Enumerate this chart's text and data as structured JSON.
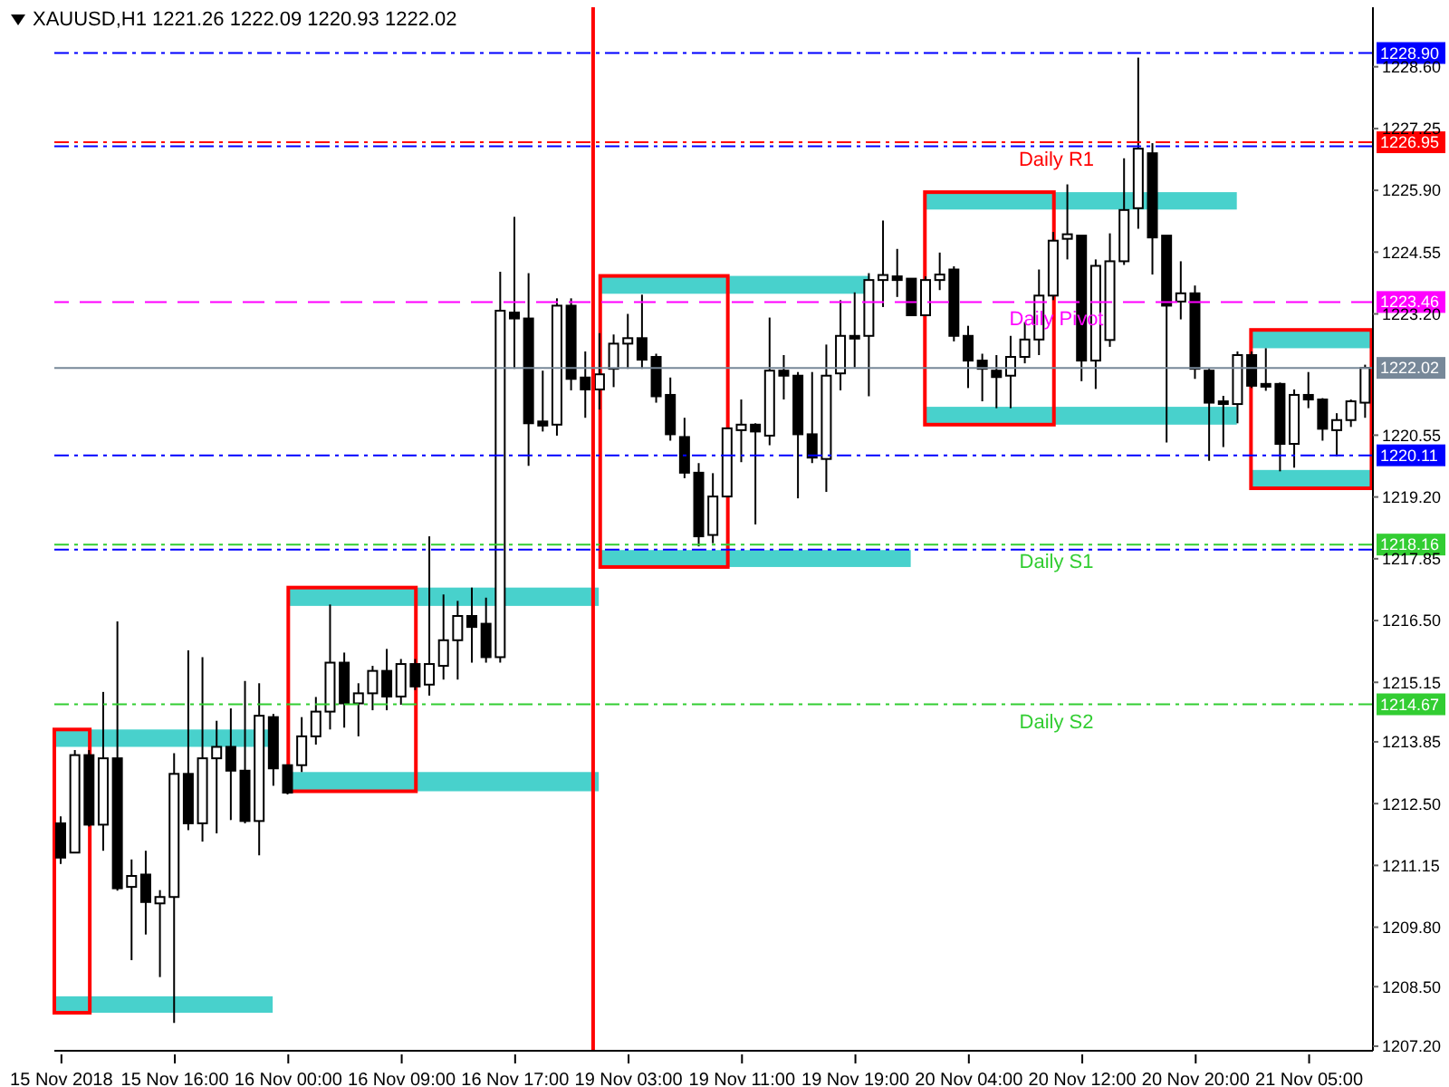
{
  "chart_data": {
    "type": "candlestick",
    "title": "XAUUSD,H1 1221.26 1222.09 1220.93 1222.02",
    "categories": [
      "15 Nov 2018",
      null,
      null,
      null,
      null,
      null,
      null,
      null,
      "15 Nov 16:00",
      null,
      null,
      null,
      null,
      null,
      null,
      null,
      "16 Nov 00:00",
      null,
      null,
      null,
      null,
      null,
      null,
      null,
      "16 Nov 09:00",
      null,
      null,
      null,
      null,
      null,
      null,
      null,
      "16 Nov 17:00",
      null,
      null,
      null,
      null,
      null,
      null,
      null,
      "19 Nov 03:00",
      null,
      null,
      null,
      null,
      null,
      null,
      null,
      "19 Nov 11:00",
      null,
      null,
      null,
      null,
      null,
      null,
      null,
      "19 Nov 19:00",
      null,
      null,
      null,
      null,
      null,
      null,
      null,
      "20 Nov 04:00",
      null,
      null,
      null,
      null,
      null,
      null,
      null,
      "20 Nov 12:00",
      null,
      null,
      null,
      null,
      null,
      null,
      null,
      "20 Nov 20:00",
      null,
      null,
      null,
      null,
      null,
      null,
      null,
      "21 Nov 05:00",
      null,
      null,
      null,
      null
    ],
    "ohlc": [
      [
        1212.07,
        1212.22,
        1211.18,
        1211.32
      ],
      [
        1211.43,
        1213.67,
        1211.43,
        1213.56
      ],
      [
        1213.56,
        1213.67,
        1212.0,
        1212.04
      ],
      [
        1212.04,
        1214.94,
        1211.47,
        1213.49
      ],
      [
        1213.49,
        1216.48,
        1210.6,
        1210.65
      ],
      [
        1210.68,
        1211.28,
        1209.08,
        1210.92
      ],
      [
        1210.95,
        1211.47,
        1209.64,
        1210.35
      ],
      [
        1210.32,
        1210.61,
        1208.71,
        1210.46
      ],
      [
        1210.46,
        1213.6,
        1207.71,
        1213.15
      ],
      [
        1213.15,
        1215.85,
        1211.92,
        1212.07
      ],
      [
        1212.07,
        1215.7,
        1211.67,
        1213.49
      ],
      [
        1213.49,
        1214.31,
        1211.85,
        1213.74
      ],
      [
        1213.74,
        1214.58,
        1212.14,
        1213.22
      ],
      [
        1213.22,
        1215.18,
        1212.07,
        1212.12
      ],
      [
        1212.12,
        1215.13,
        1211.37,
        1214.42
      ],
      [
        1214.39,
        1214.46,
        1212.89,
        1213.27
      ],
      [
        1213.34,
        1213.34,
        1212.7,
        1212.74
      ],
      [
        1213.34,
        1214.39,
        1213.19,
        1213.97
      ],
      [
        1213.97,
        1214.83,
        1213.79,
        1214.51
      ],
      [
        1214.51,
        1216.85,
        1214.12,
        1215.58
      ],
      [
        1215.58,
        1215.8,
        1214.16,
        1214.69
      ],
      [
        1214.69,
        1215.13,
        1213.97,
        1214.91
      ],
      [
        1214.91,
        1215.51,
        1214.54,
        1215.4
      ],
      [
        1215.4,
        1215.88,
        1214.54,
        1214.84
      ],
      [
        1214.84,
        1215.66,
        1214.66,
        1215.55
      ],
      [
        1215.55,
        1215.66,
        1214.98,
        1215.06
      ],
      [
        1215.1,
        1218.34,
        1214.86,
        1215.55
      ],
      [
        1215.51,
        1217.07,
        1215.21,
        1216.07
      ],
      [
        1216.07,
        1216.93,
        1215.21,
        1216.6
      ],
      [
        1216.6,
        1217.22,
        1215.58,
        1216.36
      ],
      [
        1216.43,
        1217.0,
        1215.58,
        1215.7
      ],
      [
        1215.7,
        1224.12,
        1215.58,
        1223.27
      ],
      [
        1223.23,
        1225.32,
        1222.0,
        1223.1
      ],
      [
        1223.1,
        1224.09,
        1219.88,
        1220.81
      ],
      [
        1220.85,
        1221.96,
        1220.63,
        1220.76
      ],
      [
        1220.78,
        1223.54,
        1220.54,
        1223.38
      ],
      [
        1223.38,
        1223.54,
        1221.53,
        1221.78
      ],
      [
        1221.81,
        1222.38,
        1220.93,
        1221.55
      ],
      [
        1221.55,
        1222.78,
        1221.11,
        1221.88
      ],
      [
        1222.0,
        1222.75,
        1221.6,
        1222.55
      ],
      [
        1222.55,
        1223.2,
        1222.0,
        1222.67
      ],
      [
        1222.67,
        1223.62,
        1222.0,
        1222.2
      ],
      [
        1222.26,
        1222.33,
        1221.26,
        1221.4
      ],
      [
        1221.43,
        1221.81,
        1220.43,
        1220.57
      ],
      [
        1220.51,
        1220.93,
        1219.61,
        1219.73
      ],
      [
        1219.73,
        1219.94,
        1218.12,
        1218.34
      ],
      [
        1218.37,
        1219.72,
        1218.19,
        1219.21
      ],
      [
        1219.21,
        1220.7,
        1219.21,
        1220.7
      ],
      [
        1220.66,
        1221.33,
        1219.96,
        1220.78
      ],
      [
        1220.78,
        1220.81,
        1218.6,
        1220.63
      ],
      [
        1220.54,
        1223.12,
        1220.33,
        1221.96
      ],
      [
        1221.96,
        1222.3,
        1221.33,
        1221.85
      ],
      [
        1221.85,
        1221.93,
        1219.17,
        1220.57
      ],
      [
        1220.57,
        1221.93,
        1219.94,
        1220.06
      ],
      [
        1220.03,
        1222.53,
        1219.31,
        1221.85
      ],
      [
        1221.9,
        1223.5,
        1221.53,
        1222.72
      ],
      [
        1222.72,
        1223.67,
        1222.03,
        1222.66
      ],
      [
        1222.72,
        1224.09,
        1221.4,
        1223.94
      ],
      [
        1223.94,
        1225.24,
        1223.35,
        1224.05
      ],
      [
        1224.02,
        1224.62,
        1223.57,
        1223.94
      ],
      [
        1223.97,
        1223.97,
        1223.17,
        1223.17
      ],
      [
        1223.17,
        1224.02,
        1223.17,
        1223.94
      ],
      [
        1223.94,
        1224.54,
        1223.72,
        1224.06
      ],
      [
        1224.17,
        1224.24,
        1222.6,
        1222.72
      ],
      [
        1222.72,
        1222.94,
        1221.58,
        1222.18
      ],
      [
        1222.18,
        1222.33,
        1221.29,
        1222.0
      ],
      [
        1221.96,
        1222.3,
        1221.14,
        1221.82
      ],
      [
        1221.85,
        1222.72,
        1221.14,
        1222.26
      ],
      [
        1222.26,
        1223.02,
        1222.12,
        1222.64
      ],
      [
        1222.64,
        1224.17,
        1222.3,
        1223.6
      ],
      [
        1223.6,
        1224.99,
        1223.5,
        1224.8
      ],
      [
        1224.84,
        1226.03,
        1224.39,
        1224.94
      ],
      [
        1224.91,
        1224.91,
        1221.73,
        1222.18
      ],
      [
        1222.18,
        1224.39,
        1221.56,
        1224.25
      ],
      [
        1222.63,
        1224.96,
        1222.48,
        1224.35
      ],
      [
        1224.35,
        1226.6,
        1224.27,
        1225.47
      ],
      [
        1225.51,
        1228.8,
        1225.06,
        1226.81
      ],
      [
        1226.71,
        1226.93,
        1224.06,
        1224.87
      ],
      [
        1224.91,
        1224.91,
        1220.39,
        1223.38
      ],
      [
        1223.47,
        1224.35,
        1223.08,
        1223.65
      ],
      [
        1223.65,
        1223.82,
        1221.78,
        1222.0
      ],
      [
        1221.96,
        1222.0,
        1219.99,
        1221.26
      ],
      [
        1221.29,
        1221.41,
        1220.29,
        1221.23
      ],
      [
        1221.23,
        1222.38,
        1220.81,
        1222.3
      ],
      [
        1222.3,
        1222.38,
        1221.58,
        1221.63
      ],
      [
        1221.67,
        1222.45,
        1221.52,
        1221.61
      ],
      [
        1221.67,
        1221.7,
        1219.76,
        1220.36
      ],
      [
        1220.36,
        1221.55,
        1219.84,
        1221.43
      ],
      [
        1221.43,
        1221.93,
        1221.14,
        1221.33
      ],
      [
        1221.33,
        1221.36,
        1220.43,
        1220.69
      ],
      [
        1220.66,
        1221.03,
        1220.09,
        1220.88
      ],
      [
        1220.88,
        1221.33,
        1220.73,
        1221.29
      ],
      [
        1221.26,
        1222.09,
        1220.93,
        1222.02
      ]
    ],
    "ylim": [
      1207.1,
      1229.9
    ],
    "yticks": [
      {
        "value": 1228.6,
        "label": "1228.60"
      },
      {
        "value": 1227.25,
        "label": "1227.25"
      },
      {
        "value": 1225.9,
        "label": "1225.90"
      },
      {
        "value": 1224.55,
        "label": "1224.55"
      },
      {
        "value": 1223.2,
        "label": "1223.20"
      },
      {
        "value": 1220.55,
        "label": "1220.55"
      },
      {
        "value": 1219.2,
        "label": "1219.20"
      },
      {
        "value": 1217.85,
        "label": "1217.85"
      },
      {
        "value": 1216.5,
        "label": "1216.50"
      },
      {
        "value": 1215.15,
        "label": "1215.15"
      },
      {
        "value": 1213.85,
        "label": "1213.85"
      },
      {
        "value": 1212.5,
        "label": "1212.50"
      },
      {
        "value": 1211.15,
        "label": "1211.15"
      },
      {
        "value": 1209.8,
        "label": "1209.80"
      },
      {
        "value": 1208.5,
        "label": "1208.50"
      },
      {
        "value": 1207.2,
        "label": "1207.20"
      }
    ],
    "ref_lines": [
      {
        "axis": "y",
        "value": 1228.9,
        "label": "1228.90",
        "color": "#0000ff",
        "line_style": "dashdot"
      },
      {
        "axis": "y",
        "value": 1226.86,
        "color": "#0000ff",
        "line_style": "dashdot"
      },
      {
        "axis": "y",
        "value": 1226.95,
        "label": "1226.95",
        "color": "#ff0000",
        "line_style": "dashdot"
      },
      {
        "axis": "y",
        "value": 1223.46,
        "label": "1223.46",
        "color": "#ff00ff",
        "line_style": "dashed"
      },
      {
        "axis": "y",
        "value": 1222.02,
        "label": "1222.02",
        "color": "#778899",
        "line_style": "solid"
      },
      {
        "axis": "y",
        "value": 1220.11,
        "label": "1220.11",
        "color": "#0000ff",
        "line_style": "dashdot"
      },
      {
        "axis": "y",
        "value": 1218.05,
        "color": "#0000ff",
        "line_style": "dashdot"
      },
      {
        "axis": "y",
        "value": 1218.16,
        "label": "1218.16",
        "color": "#32cd32",
        "line_style": "dashdot"
      },
      {
        "axis": "y",
        "value": 1214.67,
        "label": "1214.67",
        "color": "#32cd32",
        "line_style": "dashdot"
      }
    ],
    "annotations": [
      {
        "text": "Daily R1",
        "y": 1226.95
      },
      {
        "text": "Daily Pivot",
        "y": 1223.46
      },
      {
        "text": "Daily S1",
        "y": 1218.16
      },
      {
        "text": "Daily S2",
        "y": 1214.67
      }
    ]
  }
}
